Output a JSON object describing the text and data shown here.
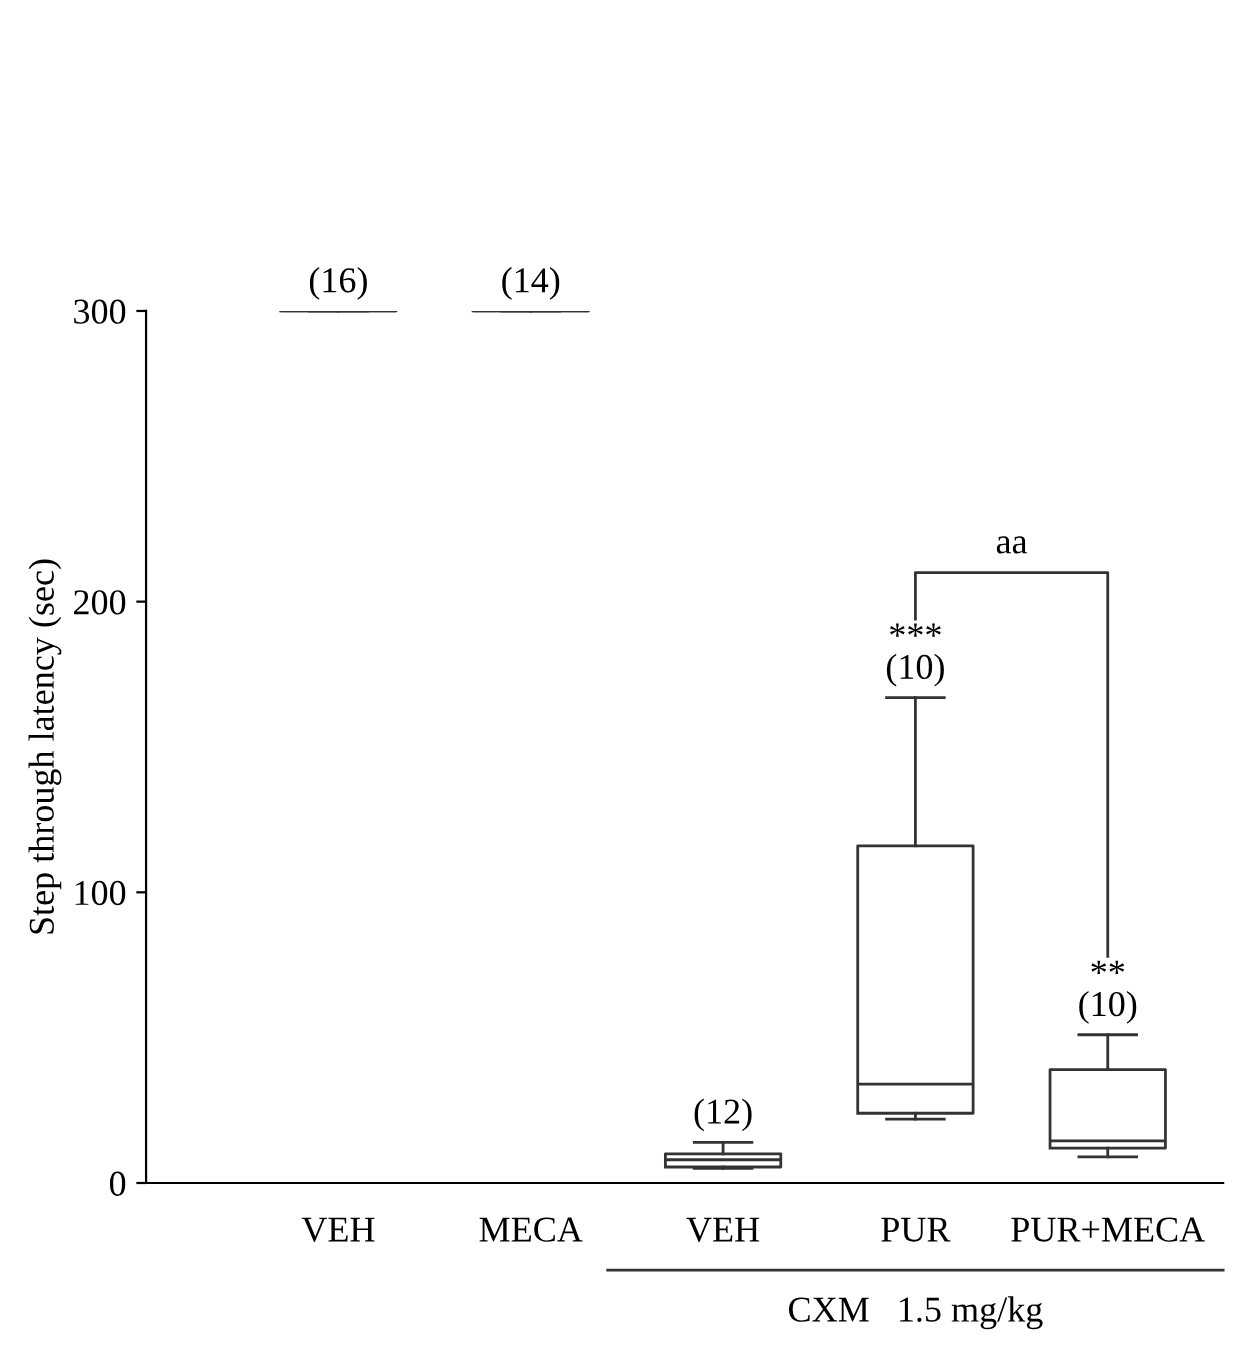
{
  "chart_data": {
    "type": "box",
    "ylabel": "Step through latency (sec)",
    "categories": [
      "VEH",
      "MECA",
      "VEH",
      "PUR",
      "PUR+MECA"
    ],
    "boxes": [
      {
        "low": 300,
        "q1": 300,
        "median": 300,
        "q3": 300,
        "high": 300
      },
      {
        "low": 300,
        "q1": 300,
        "median": 300,
        "q3": 300,
        "high": 300
      },
      {
        "low": 5,
        "q1": 5.5,
        "median": 8,
        "q3": 10,
        "high": 14
      },
      {
        "low": 22,
        "q1": 24,
        "median": 34,
        "q3": 116,
        "high": 167
      },
      {
        "low": 9,
        "q1": 12,
        "median": 14.5,
        "q3": 39,
        "high": 51
      }
    ],
    "ylim": [
      0,
      300
    ],
    "yticks": [
      0,
      100,
      200,
      300
    ],
    "annotations": [
      "(16)",
      "(14)",
      "(12)",
      "***\n(10)",
      "**\n(10)",
      "aa",
      "CXM   1.5 mg/kg"
    ]
  }
}
